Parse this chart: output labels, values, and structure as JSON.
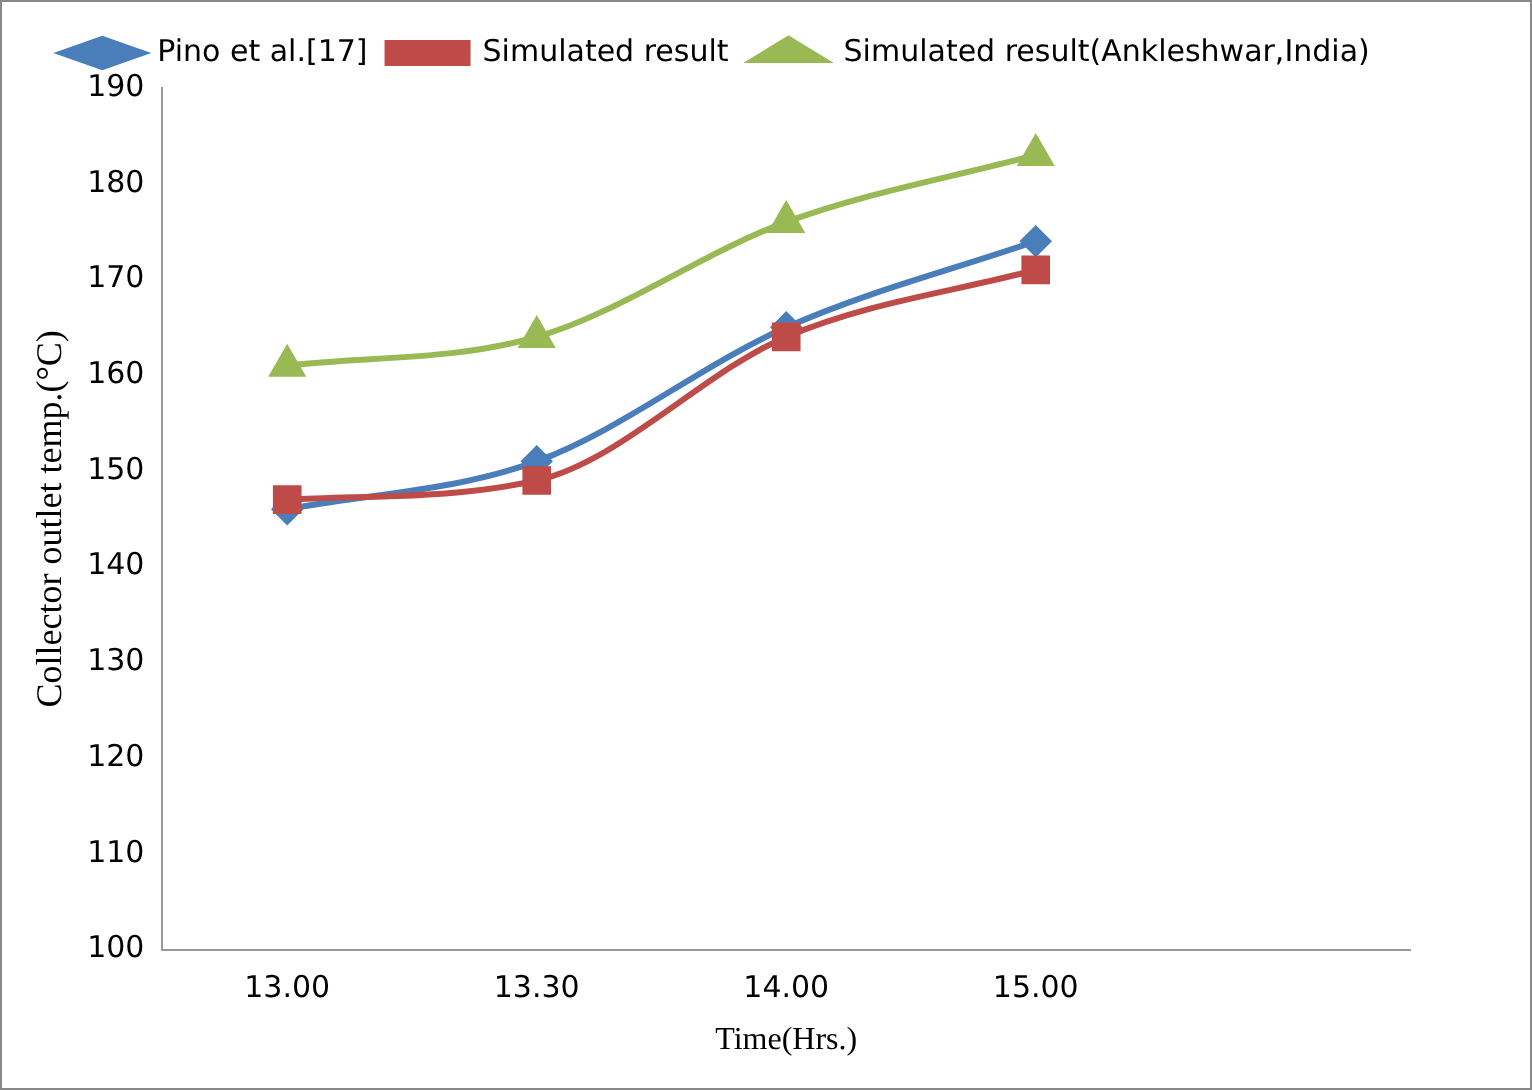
{
  "chart_data": {
    "type": "line",
    "xlabel": "Time(Hrs.)",
    "ylabel": "Collector outlet temp.(°C)",
    "categories": [
      "13.00",
      "13.30",
      "14.00",
      "15.00",
      null
    ],
    "series": [
      {
        "name": "Pino et al.[17]",
        "color": "#4a7ebb",
        "marker": "diamond",
        "values": [
          146,
          151,
          165,
          174,
          null
        ]
      },
      {
        "name": "Simulated result",
        "color": "#be4b48",
        "marker": "square",
        "values": [
          147,
          149,
          164,
          171,
          null
        ]
      },
      {
        "name": "Simulated result(Ankleshwar,India)",
        "color": "#98b954",
        "marker": "triangle",
        "values": [
          161,
          164,
          176,
          183,
          null
        ]
      }
    ],
    "ylim": [
      100,
      190
    ],
    "yticks": [
      100,
      110,
      120,
      130,
      140,
      150,
      160,
      170,
      180,
      190
    ],
    "grid": false,
    "legend": "top"
  }
}
